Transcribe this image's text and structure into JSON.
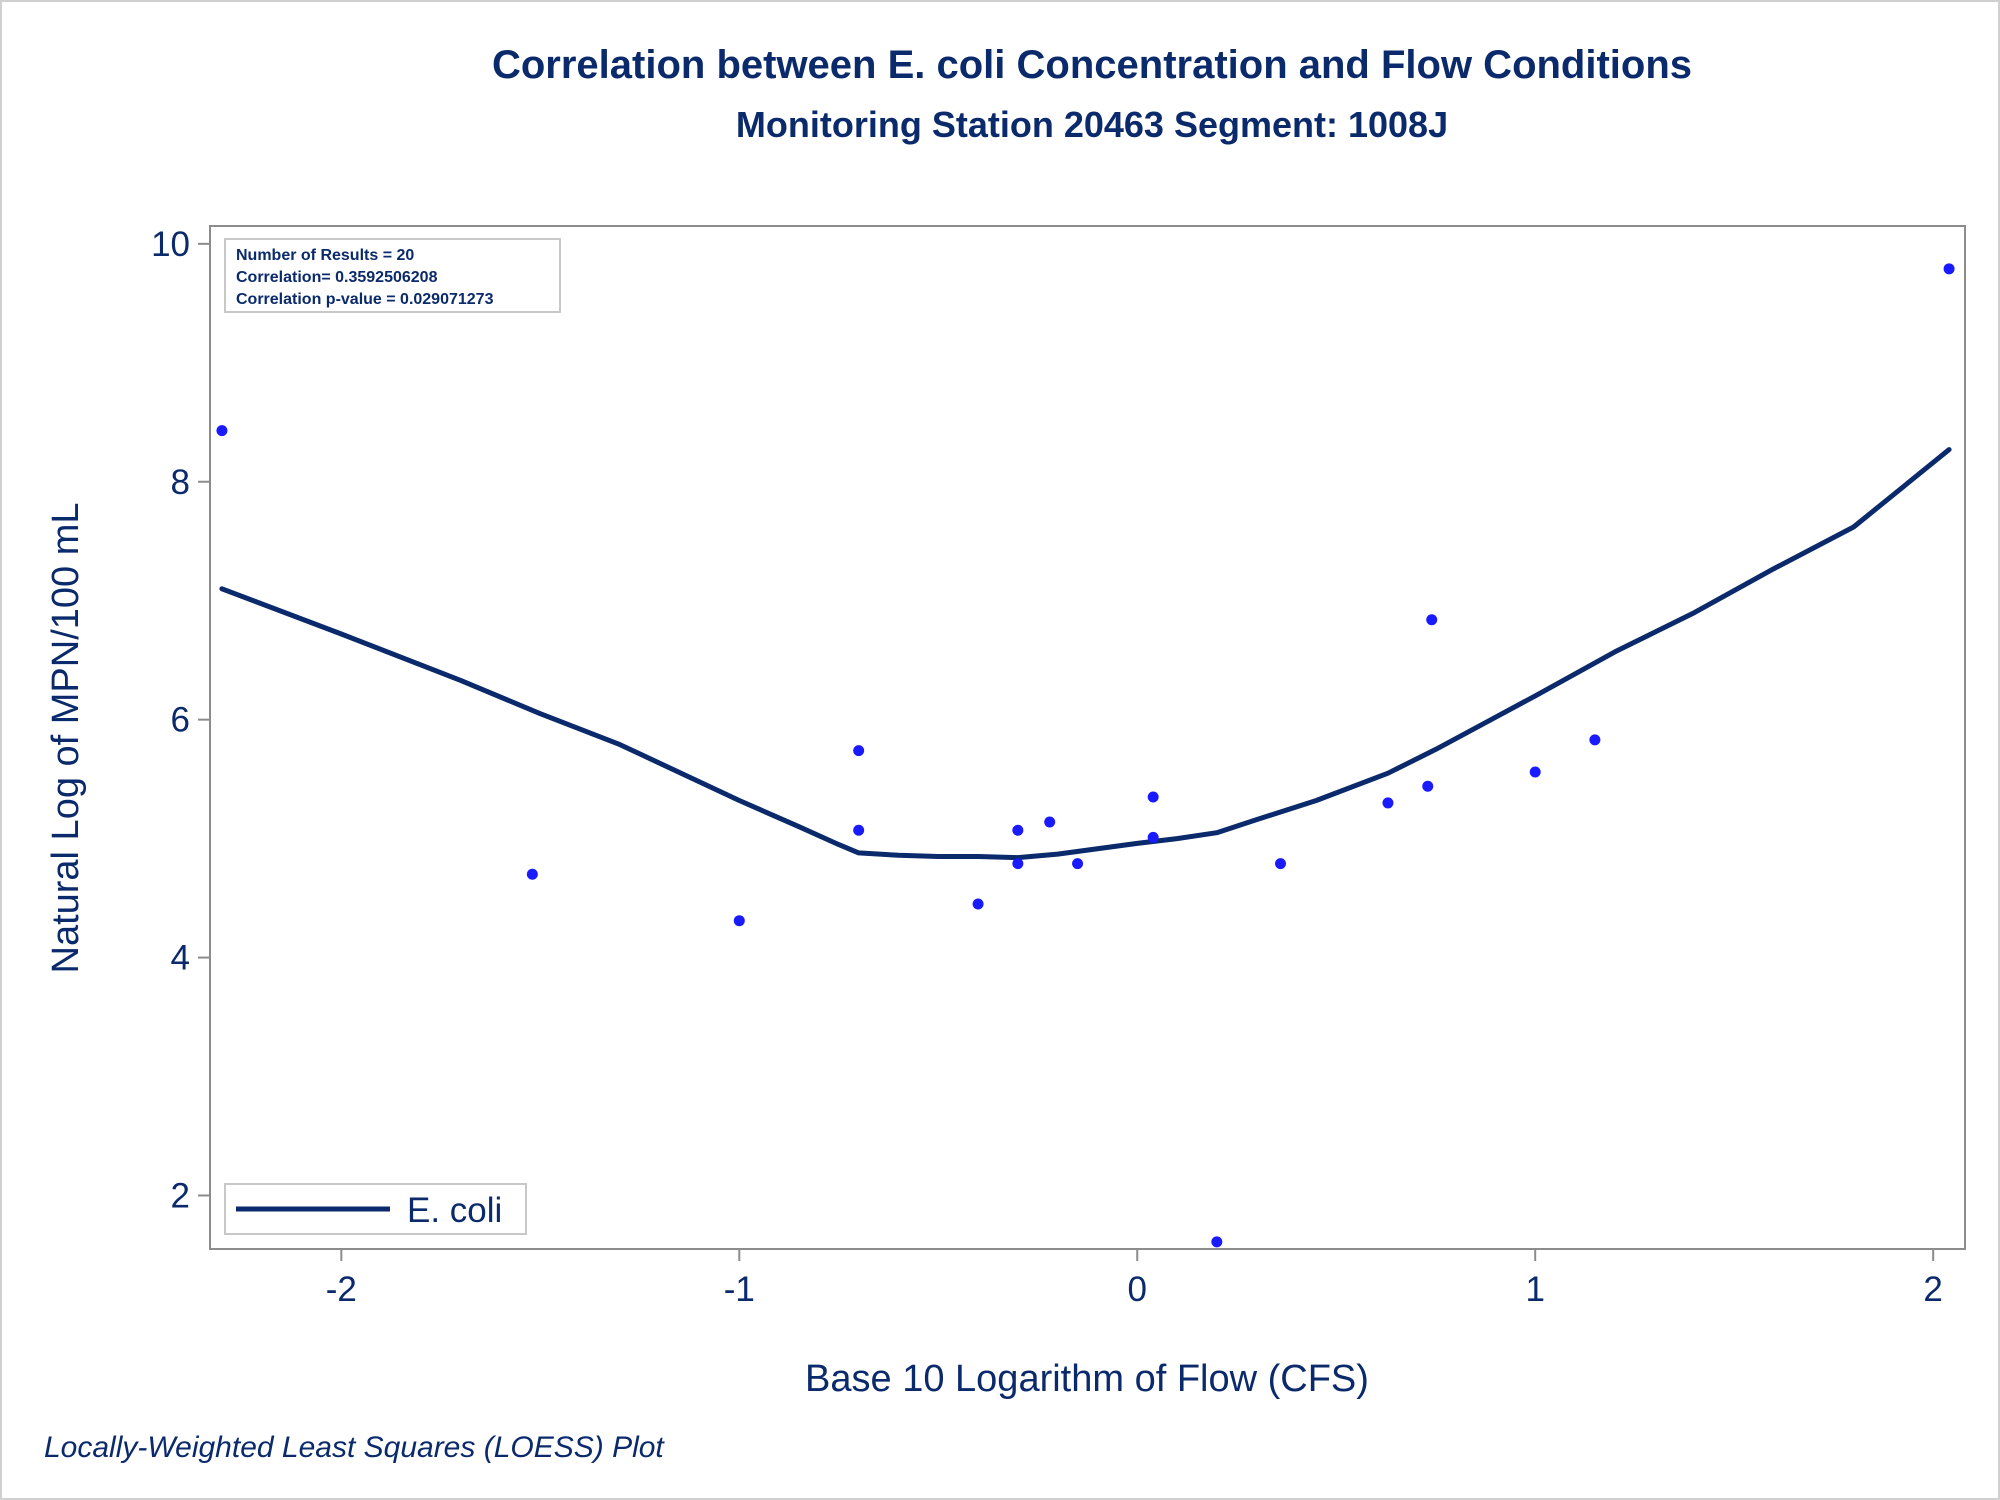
{
  "colors": {
    "text": "#0b2a6b",
    "line": "#0b2a6b",
    "points": "#1a1aff",
    "frame": "#8c8c8c",
    "inset_border": "#c8c8c8"
  },
  "footnote": "Locally-Weighted Least Squares (LOESS) Plot",
  "chart_data": {
    "type": "scatter",
    "title": "Correlation between E. coli Concentration and Flow Conditions",
    "subtitle": "Monitoring Station 20463 Segment: 1008J",
    "xlabel": "Base 10 Logarithm of Flow (CFS)",
    "ylabel": "Natural Log of MPN/100 mL",
    "xlim": [
      -2.33,
      2.08
    ],
    "ylim": [
      1.55,
      10.15
    ],
    "x_ticks": [
      -2,
      -1,
      0,
      1,
      2
    ],
    "x_tick_labels": [
      "-2",
      "-1",
      "0",
      "1",
      "2"
    ],
    "y_ticks": [
      2,
      4,
      6,
      8,
      10
    ],
    "y_tick_labels": [
      "2",
      "4",
      "6",
      "8",
      "10"
    ],
    "grid": false,
    "legend": {
      "position": "bottom-left",
      "entries": [
        "E. coli"
      ]
    },
    "stats_box": {
      "position": "top-left",
      "lines": [
        "Number of Results = 20",
        "Correlation= 0.3592506208",
        "Correlation p-value = 0.029071273"
      ]
    },
    "series": [
      {
        "kind": "scatter",
        "points": [
          {
            "x": -2.3,
            "y": 8.43
          },
          {
            "x": -1.52,
            "y": 4.7
          },
          {
            "x": -1.0,
            "y": 4.31
          },
          {
            "x": -0.7,
            "y": 5.74
          },
          {
            "x": -0.7,
            "y": 5.07
          },
          {
            "x": -0.4,
            "y": 4.45
          },
          {
            "x": -0.3,
            "y": 5.07
          },
          {
            "x": -0.3,
            "y": 4.79
          },
          {
            "x": -0.22,
            "y": 5.14
          },
          {
            "x": -0.15,
            "y": 4.79
          },
          {
            "x": 0.04,
            "y": 5.35
          },
          {
            "x": 0.04,
            "y": 5.01
          },
          {
            "x": 0.2,
            "y": 1.61
          },
          {
            "x": 0.36,
            "y": 4.79
          },
          {
            "x": 0.63,
            "y": 5.3
          },
          {
            "x": 0.73,
            "y": 5.44
          },
          {
            "x": 0.74,
            "y": 6.84
          },
          {
            "x": 1.0,
            "y": 5.56
          },
          {
            "x": 1.15,
            "y": 5.83
          },
          {
            "x": 2.04,
            "y": 9.79
          }
        ]
      },
      {
        "name": "E. coli",
        "kind": "loess-line",
        "points": [
          {
            "x": -2.3,
            "y": 7.1
          },
          {
            "x": -2.0,
            "y": 6.72
          },
          {
            "x": -1.7,
            "y": 6.33
          },
          {
            "x": -1.5,
            "y": 6.05
          },
          {
            "x": -1.3,
            "y": 5.79
          },
          {
            "x": -1.0,
            "y": 5.32
          },
          {
            "x": -0.85,
            "y": 5.1
          },
          {
            "x": -0.75,
            "y": 4.95
          },
          {
            "x": -0.7,
            "y": 4.88
          },
          {
            "x": -0.6,
            "y": 4.86
          },
          {
            "x": -0.5,
            "y": 4.85
          },
          {
            "x": -0.4,
            "y": 4.85
          },
          {
            "x": -0.3,
            "y": 4.84
          },
          {
            "x": -0.2,
            "y": 4.87
          },
          {
            "x": 0.0,
            "y": 4.96
          },
          {
            "x": 0.1,
            "y": 5.0
          },
          {
            "x": 0.2,
            "y": 5.05
          },
          {
            "x": 0.3,
            "y": 5.16
          },
          {
            "x": 0.45,
            "y": 5.32
          },
          {
            "x": 0.63,
            "y": 5.55
          },
          {
            "x": 0.75,
            "y": 5.75
          },
          {
            "x": 0.9,
            "y": 6.02
          },
          {
            "x": 1.0,
            "y": 6.2
          },
          {
            "x": 1.2,
            "y": 6.57
          },
          {
            "x": 1.4,
            "y": 6.9
          },
          {
            "x": 1.6,
            "y": 7.27
          },
          {
            "x": 1.8,
            "y": 7.62
          },
          {
            "x": 2.04,
            "y": 8.27
          }
        ]
      }
    ]
  }
}
